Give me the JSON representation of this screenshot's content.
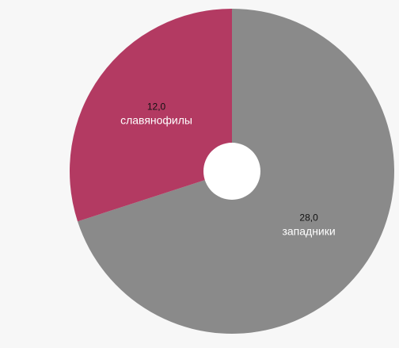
{
  "chart_data": {
    "type": "pie",
    "donut": true,
    "categories": [
      "славянофилы",
      "западники"
    ],
    "values": [
      12.0,
      28.0
    ],
    "value_labels": [
      "12,0",
      "28,0"
    ],
    "colors": [
      "#b33a62",
      "#8a8a8a"
    ],
    "title": "",
    "legend": "none",
    "start_angle_deg": 0,
    "slice_order": [
      "западники",
      "славянофилы"
    ]
  },
  "colors": {
    "background": "#f7f7f7",
    "hole": "#ffffff",
    "label_dark": "#111111",
    "label_light": "#ffffff"
  }
}
